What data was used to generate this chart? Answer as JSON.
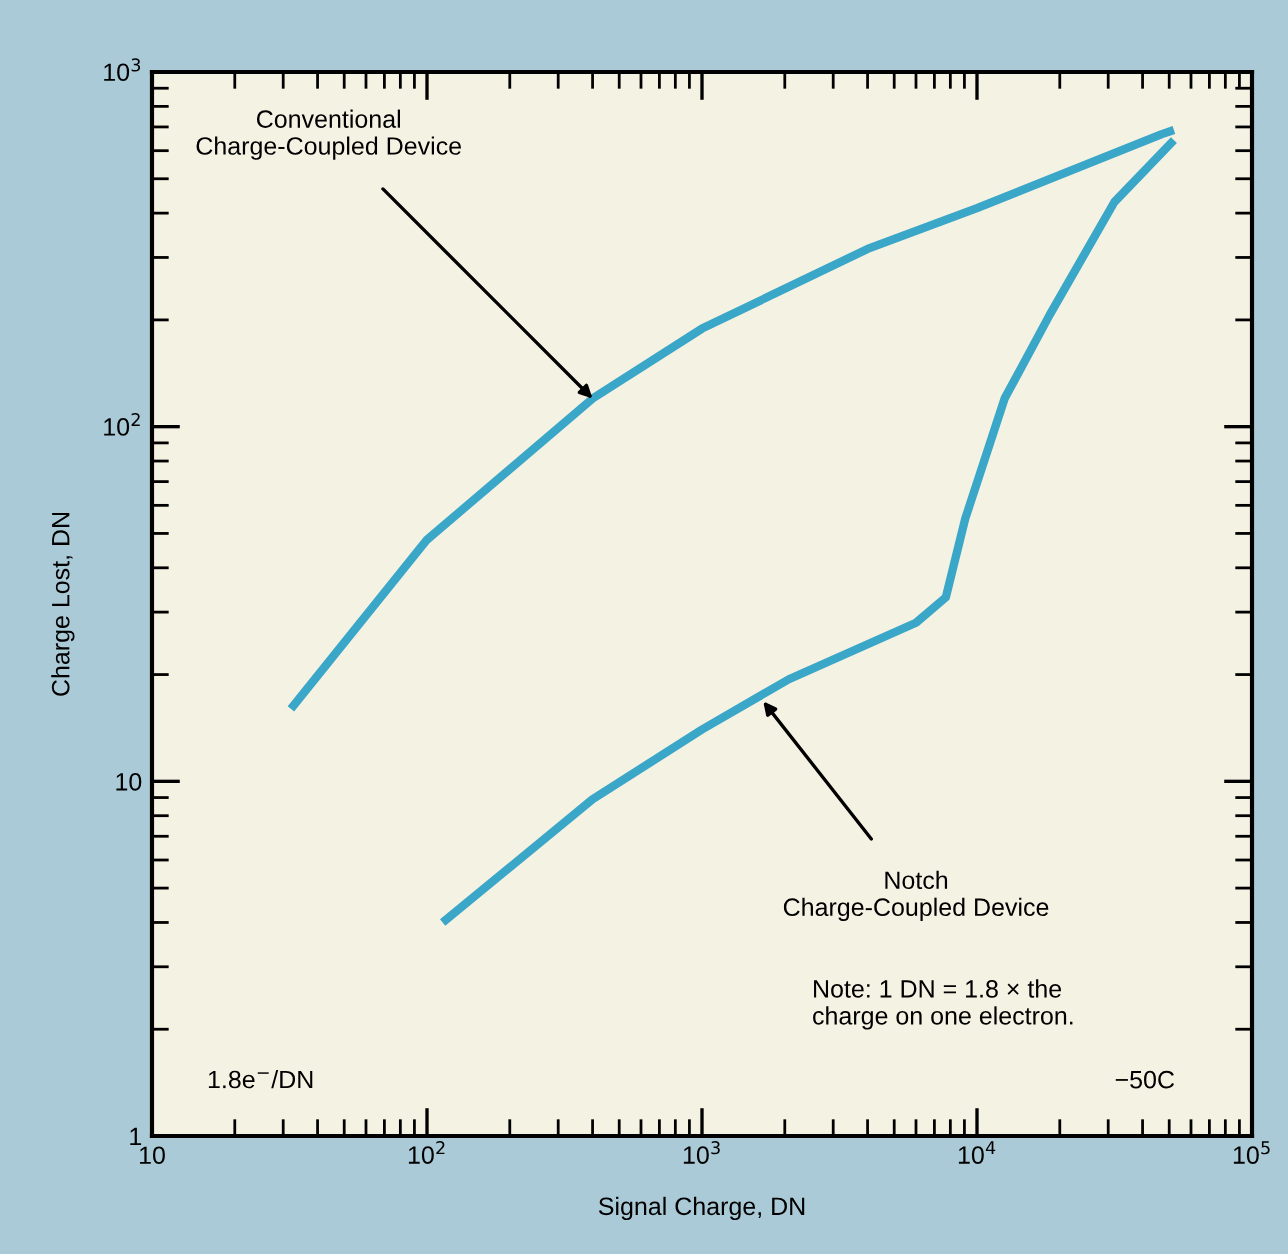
{
  "chart_data": {
    "type": "line",
    "xlabel": "Signal Charge, DN",
    "ylabel": "Charge Lost, DN",
    "log": "xy",
    "xlim": [
      10,
      100000
    ],
    "ylim": [
      1,
      1000
    ],
    "xticks": [
      10,
      {
        "value": 100,
        "label": "10$^{2}$"
      },
      {
        "value": 1000,
        "label": "10$^{3}$"
      },
      {
        "value": 10000,
        "label": "10$^{4}$"
      },
      {
        "value": 100000,
        "label": "10$^{5}$"
      }
    ],
    "yticks": [
      1,
      10,
      {
        "value": 100,
        "label": "10$^{2}$"
      },
      {
        "value": 1000,
        "label": "10$^{3}$"
      }
    ],
    "grid": false,
    "marker": "none",
    "line_style": "solid",
    "series": [
      {
        "color": "#3aa6c8",
        "x": [
          32,
          100,
          400,
          1000,
          4000,
          10000,
          47000,
          52000
        ],
        "values": [
          16,
          48,
          120,
          189,
          317,
          413,
          668,
          686
        ]
      },
      {
        "color": "#3aa6c8",
        "x": [
          114,
          400,
          1000,
          2070,
          6000,
          7700,
          9060,
          12600,
          18400,
          31600,
          52000
        ],
        "values": [
          4.0,
          8.9,
          14,
          19.4,
          28,
          33,
          55,
          120,
          207,
          430,
          643
        ]
      }
    ],
    "annotations": [
      {
        "text": "Conventional\nCharge-Coupled Device",
        "x": 400,
        "y": 120
      },
      {
        "text": "Notch\nCharge-Coupled Device",
        "x": 1670,
        "y": 16.8
      },
      "Note: 1 DN = 1.8 × the\ncharge on one electron.",
      "1.8e$^{−}$/DN",
      "−50C"
    ]
  }
}
